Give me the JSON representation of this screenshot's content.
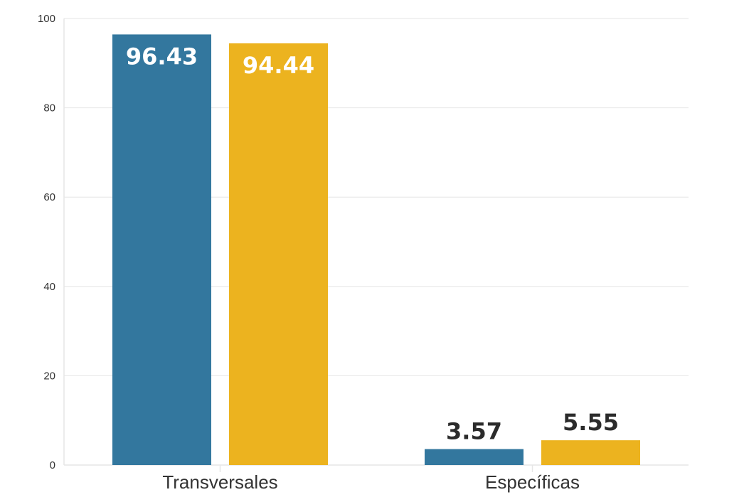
{
  "chart_data": {
    "type": "bar",
    "categories": [
      "Transversales",
      "Específicas"
    ],
    "series": [
      {
        "color": "#33779e",
        "values": [
          96.43,
          3.57
        ],
        "labels": [
          "96.43",
          "3.57"
        ]
      },
      {
        "color": "#ecb31f",
        "values": [
          94.44,
          5.55
        ],
        "labels": [
          "94.44",
          "5.55"
        ]
      }
    ],
    "ylim": [
      0,
      100
    ],
    "yticks": [
      0,
      20,
      40,
      60,
      80,
      100
    ],
    "ytick_labels": [
      "0",
      "20",
      "40",
      "60",
      "80",
      "100"
    ],
    "grid": true,
    "legend": "none"
  }
}
